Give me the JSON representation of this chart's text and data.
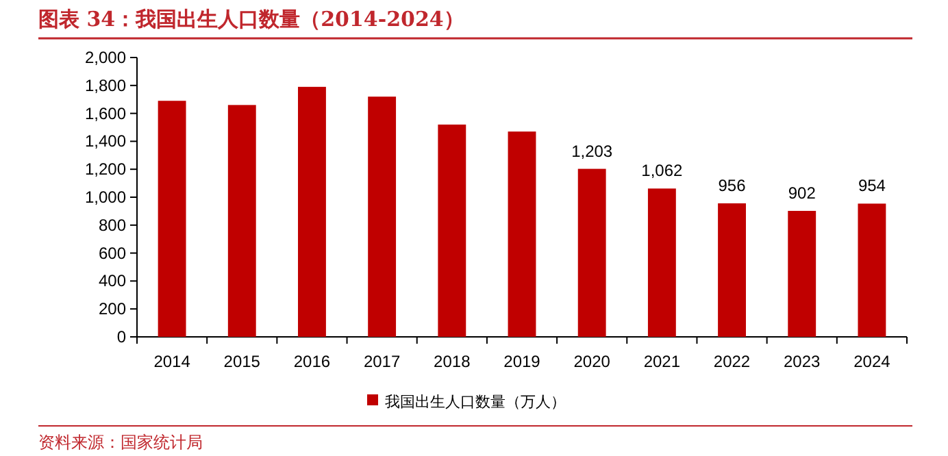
{
  "chart_data": {
    "type": "bar",
    "title": "图表 34：我国出生人口数量（2014-2024）",
    "categories": [
      "2014",
      "2015",
      "2016",
      "2017",
      "2018",
      "2019",
      "2020",
      "2021",
      "2022",
      "2023",
      "2024"
    ],
    "series": [
      {
        "name": "我国出生人口数量（万人）",
        "color": "#c00000",
        "values": [
          1690,
          1660,
          1790,
          1720,
          1520,
          1470,
          1203,
          1062,
          956,
          902,
          954
        ],
        "value_labels": [
          null,
          null,
          null,
          null,
          null,
          null,
          "1,203",
          "1,062",
          "956",
          "902",
          "954"
        ]
      }
    ],
    "ylim": [
      0,
      2000
    ],
    "yticks": [
      {
        "value": 0,
        "label": "0"
      },
      {
        "value": 200,
        "label": "200"
      },
      {
        "value": 400,
        "label": "400"
      },
      {
        "value": 600,
        "label": "600"
      },
      {
        "value": 800,
        "label": "800"
      },
      {
        "value": 1000,
        "label": "1,000"
      },
      {
        "value": 1200,
        "label": "1,200"
      },
      {
        "value": 1400,
        "label": "1,400"
      },
      {
        "value": 1600,
        "label": "1,600"
      },
      {
        "value": 1800,
        "label": "1,800"
      },
      {
        "value": 2000,
        "label": "2,000"
      }
    ],
    "grid": false,
    "legend": "bottom",
    "annotations": [
      "资料来源：国家统计局"
    ]
  }
}
